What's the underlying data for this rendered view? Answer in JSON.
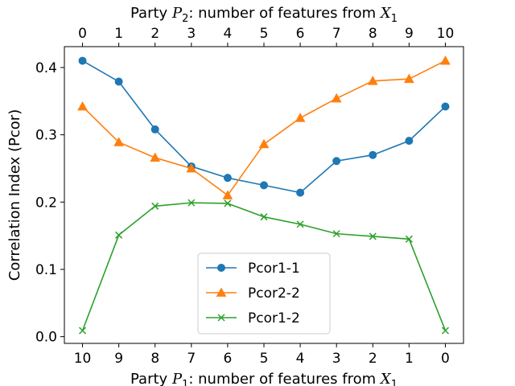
{
  "chart_data": {
    "type": "line",
    "x": [
      0,
      1,
      2,
      3,
      4,
      5,
      6,
      7,
      8,
      9,
      10
    ],
    "top_tick_labels": [
      "0",
      "1",
      "2",
      "3",
      "4",
      "5",
      "6",
      "7",
      "8",
      "9",
      "10"
    ],
    "bottom_tick_labels": [
      "10",
      "9",
      "8",
      "7",
      "6",
      "5",
      "4",
      "3",
      "2",
      "1",
      "0"
    ],
    "y_ticks": [
      0.0,
      0.1,
      0.2,
      0.3,
      0.4
    ],
    "y_tick_labels": [
      "0.0",
      "0.1",
      "0.2",
      "0.3",
      "0.4"
    ],
    "xlim": [
      -0.5,
      10.5
    ],
    "ylim": [
      -0.01,
      0.431
    ],
    "top_xlabel": {
      "prefix": "Party ",
      "var": "P",
      "sub": "2",
      "mid": ": number of features from ",
      "var2": "X",
      "sub2": "1"
    },
    "bottom_xlabel": {
      "prefix": "Party ",
      "var": "P",
      "sub": "1",
      "mid": ": number of features from ",
      "var2": "X",
      "sub2": "1"
    },
    "ylabel": "Correlation Index (Pcor)",
    "grid": false,
    "legend_position": "bottom-center",
    "series": [
      {
        "name": "Pcor1-1",
        "color": "#1f77b4",
        "marker": "circle",
        "values": [
          0.41,
          0.379,
          0.308,
          0.253,
          0.236,
          0.225,
          0.214,
          0.261,
          0.27,
          0.291,
          0.342
        ]
      },
      {
        "name": "Pcor2-2",
        "color": "#ff7f0e",
        "marker": "triangle",
        "values": [
          0.342,
          0.289,
          0.266,
          0.25,
          0.21,
          0.286,
          0.325,
          0.354,
          0.38,
          0.383,
          0.41
        ]
      },
      {
        "name": "Pcor1-2",
        "color": "#2ca02c",
        "marker": "x",
        "values": [
          0.009,
          0.151,
          0.194,
          0.199,
          0.198,
          0.178,
          0.167,
          0.153,
          0.149,
          0.145,
          0.009
        ]
      }
    ]
  }
}
